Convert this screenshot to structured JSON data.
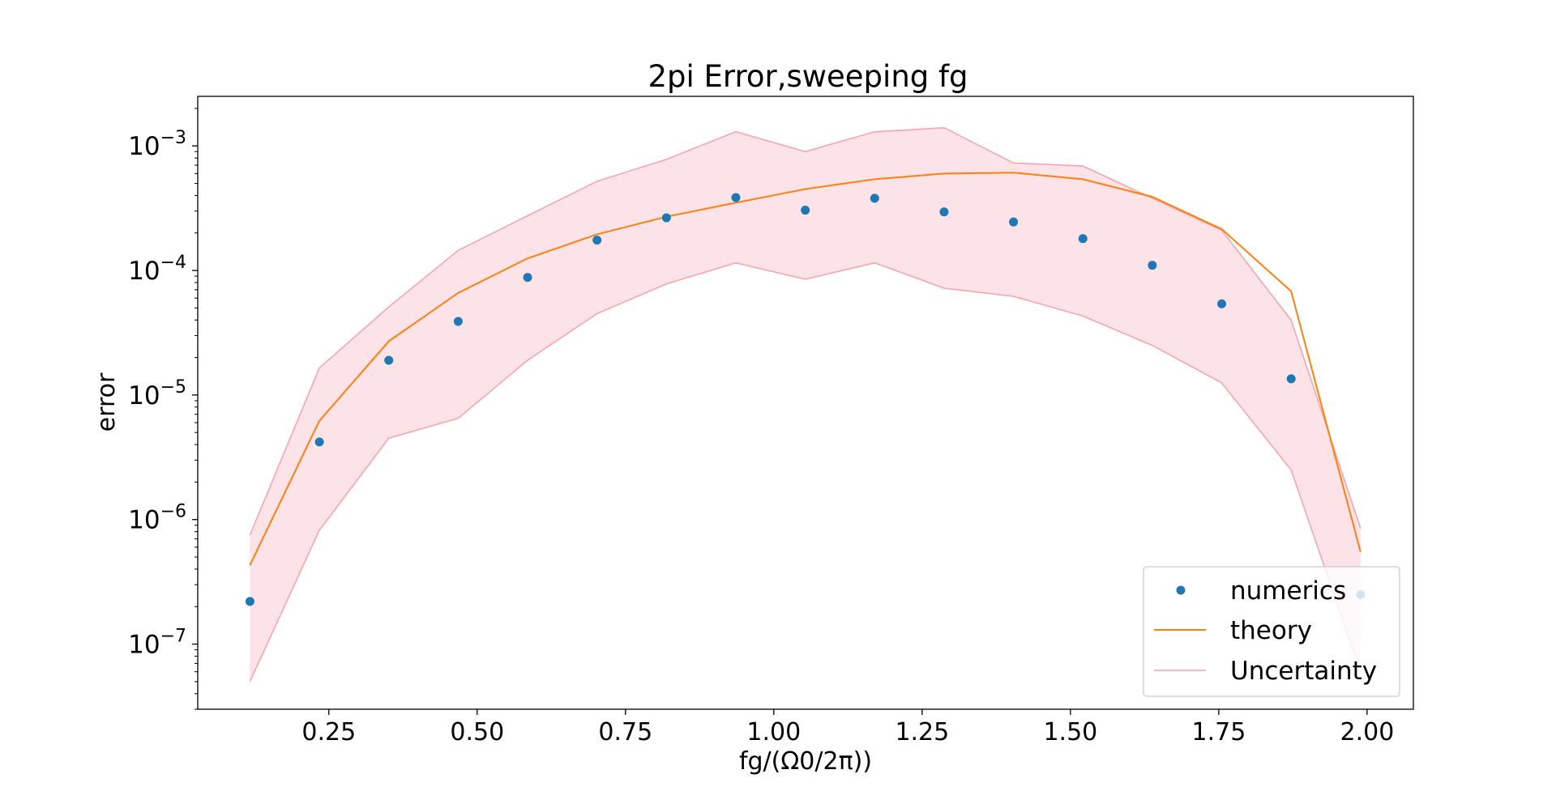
{
  "chart_data": {
    "type": "scatter",
    "title": "2pi Error,sweeping fg",
    "xlabel": "fg/(Ω0/2π))",
    "ylabel": "error",
    "yscale": "log",
    "xlim": [
      0.029,
      2.078
    ],
    "ylim": [
      3e-08,
      0.0025
    ],
    "x_ticks": [
      0.25,
      0.5,
      0.75,
      1.0,
      1.25,
      1.5,
      1.75,
      2.0
    ],
    "x_tick_labels": [
      "0.25",
      "0.50",
      "0.75",
      "1.00",
      "1.25",
      "1.50",
      "1.75",
      "2.00"
    ],
    "y_ticks": [
      1e-07,
      1e-06,
      1e-05,
      0.0001,
      0.001
    ],
    "y_tick_labels": [
      {
        "base": "10",
        "exp": "−7"
      },
      {
        "base": "10",
        "exp": "−6"
      },
      {
        "base": "10",
        "exp": "−5"
      },
      {
        "base": "10",
        "exp": "−4"
      },
      {
        "base": "10",
        "exp": "−3"
      }
    ],
    "grid": false,
    "legend_position": "bottom-right",
    "x": [
      0.117,
      0.234,
      0.351,
      0.468,
      0.585,
      0.702,
      0.819,
      0.936,
      1.053,
      1.17,
      1.287,
      1.404,
      1.521,
      1.638,
      1.755,
      1.872,
      1.989
    ],
    "series": [
      {
        "name": "numerics",
        "kind": "scatter",
        "color": "#1f77b4",
        "values": [
          2.2e-07,
          4.2e-06,
          1.9e-05,
          3.9e-05,
          8.8e-05,
          0.000175,
          0.000265,
          0.000385,
          0.000305,
          0.00038,
          0.000295,
          0.000245,
          0.00018,
          0.00011,
          5.4e-05,
          1.35e-05,
          2.5e-07
        ]
      },
      {
        "name": "theory",
        "kind": "line",
        "color": "#ff7f0e",
        "values": [
          4.3e-07,
          6.2e-06,
          2.7e-05,
          6.6e-05,
          0.000125,
          0.000195,
          0.00027,
          0.00035,
          0.00045,
          0.00054,
          0.0006,
          0.00061,
          0.00054,
          0.00039,
          0.000215,
          6.8e-05,
          5.5e-07
        ]
      },
      {
        "name": "Uncertainty",
        "kind": "band",
        "color": "#f7a1a9",
        "fill": "#fbe3e8",
        "upper": [
          7.5e-07,
          1.65e-05,
          5.1e-05,
          0.000145,
          0.000275,
          0.00052,
          0.00078,
          0.0013,
          0.0009,
          0.0013,
          0.0014,
          0.00073,
          0.00069,
          0.00038,
          0.00021,
          4e-05,
          8.5e-07
        ],
        "lower": [
          5e-08,
          8.2e-07,
          4.5e-06,
          6.5e-06,
          1.9e-05,
          4.5e-05,
          7.8e-05,
          0.000115,
          8.5e-05,
          0.000115,
          7.2e-05,
          6.2e-05,
          4.3e-05,
          2.5e-05,
          1.25e-05,
          2.5e-06,
          6e-08
        ]
      }
    ]
  }
}
